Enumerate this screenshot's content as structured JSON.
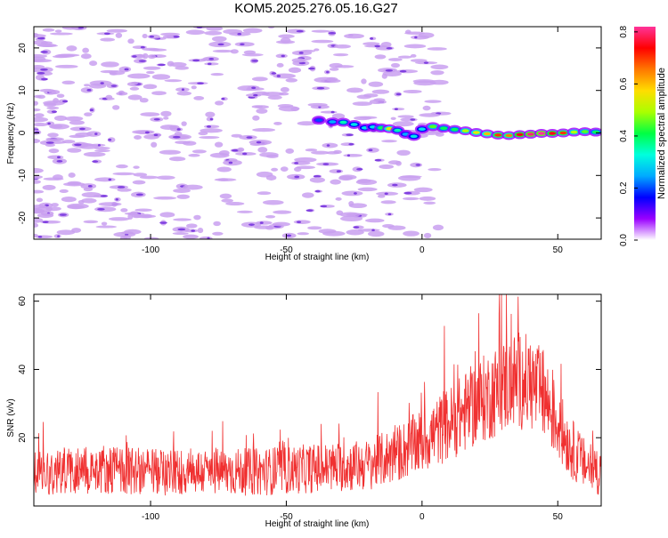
{
  "title": "KOM5.2025.276.05.16.G27",
  "colors": {
    "line": "#f03030",
    "axis": "#000000",
    "blob": "#c9a0f0",
    "blob_core": "#7f3fe0"
  },
  "chart_data": [
    {
      "type": "heatmap",
      "name": "spectrogram",
      "xlabel": "Height of straight line (km)",
      "ylabel": "Frequency (Hz)",
      "xlim": [
        -143,
        66
      ],
      "ylim": [
        -25,
        25
      ],
      "xticks": [
        -100,
        -50,
        0,
        50
      ],
      "xtick_labels": [
        "-100",
        "-50",
        "0",
        "50"
      ],
      "yticks": [
        20,
        10,
        0,
        -10,
        -20
      ],
      "ytick_labels": [
        "20",
        "10",
        "0",
        "-10",
        "-20"
      ],
      "colorbar": {
        "label": "Normalized spectral amplitude",
        "range": [
          0.0,
          0.82
        ],
        "ticks": [
          0.0,
          0.2,
          0.4,
          0.6,
          0.8
        ],
        "tick_labels": [
          "0.0",
          "0.2",
          "0.4",
          "0.6",
          "0.8"
        ],
        "stops": [
          "#ffffff",
          "#9a00ff",
          "#0000ff",
          "#00aaff",
          "#00ffdd",
          "#00ff44",
          "#aaff00",
          "#ffdd00",
          "#ff7700",
          "#ff0000",
          "#ff3399"
        ]
      },
      "ridge": [
        {
          "x": -38,
          "y": 3.0,
          "a": 0.2
        },
        {
          "x": -33,
          "y": 2.6,
          "a": 0.25
        },
        {
          "x": -29,
          "y": 2.5,
          "a": 0.35
        },
        {
          "x": -25,
          "y": 2.0,
          "a": 0.3
        },
        {
          "x": -21,
          "y": 1.2,
          "a": 0.3
        },
        {
          "x": -18,
          "y": 1.4,
          "a": 0.3
        },
        {
          "x": -15,
          "y": 1.2,
          "a": 0.4
        },
        {
          "x": -12,
          "y": 1.0,
          "a": 0.55
        },
        {
          "x": -9,
          "y": 0.6,
          "a": 0.35
        },
        {
          "x": -6,
          "y": -0.3,
          "a": 0.25
        },
        {
          "x": -3,
          "y": -0.8,
          "a": 0.3
        },
        {
          "x": 0,
          "y": 0.9,
          "a": 0.3
        },
        {
          "x": 4,
          "y": 1.5,
          "a": 0.45
        },
        {
          "x": 8,
          "y": 1.1,
          "a": 0.4
        },
        {
          "x": 12,
          "y": 0.8,
          "a": 0.4
        },
        {
          "x": 16,
          "y": 0.5,
          "a": 0.5
        },
        {
          "x": 20,
          "y": 0.1,
          "a": 0.55
        },
        {
          "x": 24,
          "y": -0.2,
          "a": 0.6
        },
        {
          "x": 28,
          "y": -0.5,
          "a": 0.7
        },
        {
          "x": 32,
          "y": -0.6,
          "a": 0.65
        },
        {
          "x": 36,
          "y": -0.4,
          "a": 0.75
        },
        {
          "x": 40,
          "y": -0.3,
          "a": 0.8
        },
        {
          "x": 44,
          "y": -0.1,
          "a": 0.82
        },
        {
          "x": 48,
          "y": -0.1,
          "a": 0.75
        },
        {
          "x": 52,
          "y": 0.0,
          "a": 0.7
        },
        {
          "x": 56,
          "y": 0.2,
          "a": 0.5
        },
        {
          "x": 60,
          "y": 0.3,
          "a": 0.45
        },
        {
          "x": 64,
          "y": 0.2,
          "a": 0.4
        }
      ]
    },
    {
      "type": "line",
      "name": "snr",
      "xlabel": "Height of straight line (km)",
      "ylabel": "SNR (v/v)",
      "xlim": [
        -143,
        66
      ],
      "ylim": [
        0,
        62
      ],
      "xticks": [
        -100,
        -50,
        0,
        50
      ],
      "xtick_labels": [
        "-100",
        "-50",
        "0",
        "50"
      ],
      "yticks": [
        20,
        40,
        60
      ],
      "ytick_labels": [
        "20",
        "40",
        "60"
      ],
      "envelope_x": [
        -143,
        -120,
        -100,
        -80,
        -60,
        -40,
        -20,
        -10,
        0,
        10,
        20,
        30,
        35,
        40,
        45,
        50,
        55,
        60,
        66
      ],
      "envelope_y": [
        10,
        11,
        10,
        10,
        10,
        11,
        12,
        15,
        19,
        24,
        30,
        35,
        37,
        36,
        32,
        24,
        17,
        12,
        10
      ],
      "noise_amplitude": 7,
      "peak": {
        "x": 31,
        "y": 62
      }
    }
  ]
}
